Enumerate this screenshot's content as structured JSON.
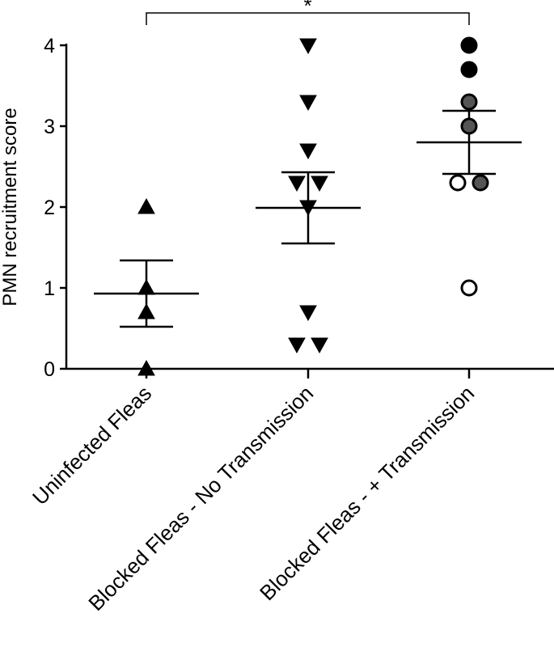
{
  "chart_data": {
    "type": "scatter",
    "title": "",
    "ylabel": "PMN recruitment score",
    "xlabel": "",
    "ylim": [
      0,
      4
    ],
    "yticks": [
      "0",
      "1",
      "2",
      "3",
      "4"
    ],
    "grid": false,
    "categories": [
      "Uninfected Fleas",
      "Blocked Fleas - No Transmission",
      "Blocked Fleas - + Transmission"
    ],
    "groups": [
      {
        "marker": "triangle-up",
        "points": [
          {
            "value": 2.0,
            "offset": 0,
            "fill": "#000000"
          },
          {
            "value": 1.0,
            "offset": 0,
            "fill": "#000000"
          },
          {
            "value": 0.7,
            "offset": 0,
            "fill": "#000000"
          },
          {
            "value": 0.0,
            "offset": 0,
            "fill": "#000000"
          }
        ],
        "mean": 0.93,
        "sem": 0.41
      },
      {
        "marker": "triangle-down",
        "points": [
          {
            "value": 4.0,
            "offset": 0,
            "fill": "#000000"
          },
          {
            "value": 3.3,
            "offset": 0,
            "fill": "#000000"
          },
          {
            "value": 2.7,
            "offset": 0,
            "fill": "#000000"
          },
          {
            "value": 2.3,
            "offset": -14,
            "fill": "#000000"
          },
          {
            "value": 2.3,
            "offset": 14,
            "fill": "#000000"
          },
          {
            "value": 2.0,
            "offset": 0,
            "fill": "#000000"
          },
          {
            "value": 0.7,
            "offset": 0,
            "fill": "#000000"
          },
          {
            "value": 0.3,
            "offset": -14,
            "fill": "#000000"
          },
          {
            "value": 0.3,
            "offset": 14,
            "fill": "#000000"
          }
        ],
        "mean": 1.99,
        "sem": 0.44
      },
      {
        "marker": "circle",
        "points": [
          {
            "value": 4.0,
            "offset": 0,
            "fill": "#000000"
          },
          {
            "value": 3.7,
            "offset": 0,
            "fill": "#000000"
          },
          {
            "value": 3.3,
            "offset": 0,
            "fill": "#555555"
          },
          {
            "value": 3.0,
            "offset": 0,
            "fill": "#555555"
          },
          {
            "value": 2.3,
            "offset": -14,
            "fill": "#ffffff"
          },
          {
            "value": 2.3,
            "offset": 14,
            "fill": "#555555"
          },
          {
            "value": 1.0,
            "offset": 0,
            "fill": "#ffffff"
          }
        ],
        "mean": 2.8,
        "sem": 0.39
      }
    ],
    "significance": {
      "from": 0,
      "to": 2,
      "label": "*"
    }
  }
}
